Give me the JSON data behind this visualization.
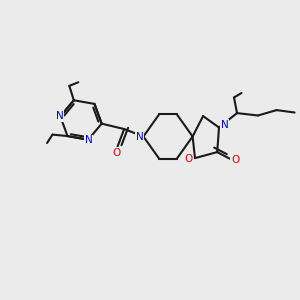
{
  "bg_color": "#ebebeb",
  "bond_color": "#1a1a1a",
  "N_color": "#0000e0",
  "O_color": "#e00000",
  "linewidth": 1.5,
  "figsize": [
    3.0,
    3.0
  ],
  "dpi": 100,
  "xlim": [
    0,
    10
  ],
  "ylim": [
    0,
    10
  ]
}
